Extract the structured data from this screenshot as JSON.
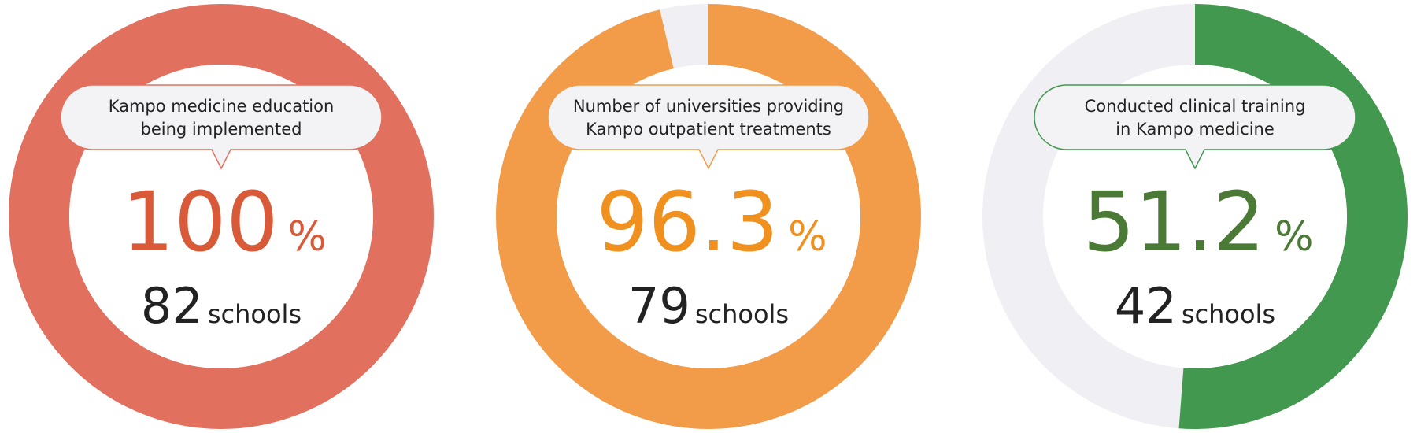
{
  "chart_data": [
    {
      "type": "donut",
      "title": [
        "Kampo medicine education",
        "being implemented"
      ],
      "value": 100,
      "unit": "%",
      "max": 100,
      "count": 82,
      "count_unit": "schools",
      "color": "#e2705f",
      "text_color": "#d95a38",
      "track_color": "#efeff4"
    },
    {
      "type": "donut",
      "title": [
        "Number of universities providing",
        "Kampo outpatient treatments"
      ],
      "value": 96.3,
      "unit": "%",
      "max": 100,
      "count": 79,
      "count_unit": "schools",
      "color": "#f29c4a",
      "text_color": "#f0901e",
      "track_color": "#efeff4"
    },
    {
      "type": "donut",
      "title": [
        "Conducted clinical training",
        "in Kampo medicine"
      ],
      "value": 51.2,
      "unit": "%",
      "max": 100,
      "count": 42,
      "count_unit": "schools",
      "color": "#43984f",
      "text_color": "#4a7a35",
      "track_color": "#efeff4"
    }
  ]
}
